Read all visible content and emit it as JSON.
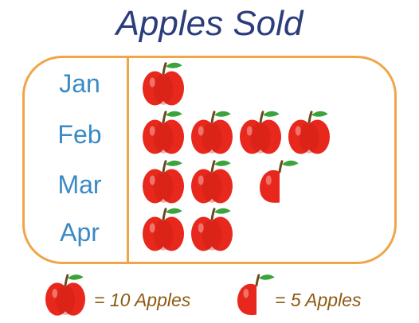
{
  "chart_data": {
    "type": "pictograph",
    "title": "Apples Sold",
    "categories": [
      "Jan",
      "Feb",
      "Mar",
      "Apr"
    ],
    "values": [
      10,
      40,
      25,
      20
    ],
    "units_per_icon": 10,
    "legend": [
      {
        "icon": "whole-apple-icon",
        "label": "= 10 Apples",
        "value": 10
      },
      {
        "icon": "half-apple-icon",
        "label": "= 5 Apples",
        "value": 5
      }
    ]
  },
  "colors": {
    "title": "#2b3d7a",
    "month_label": "#3a8ac4",
    "frame": "#f0a547",
    "apple": "#e8281c",
    "apple_shade": "#c41a12",
    "stem": "#6b4a1e",
    "leaf": "#3aa33a",
    "legend_text": "#8c5a12"
  }
}
